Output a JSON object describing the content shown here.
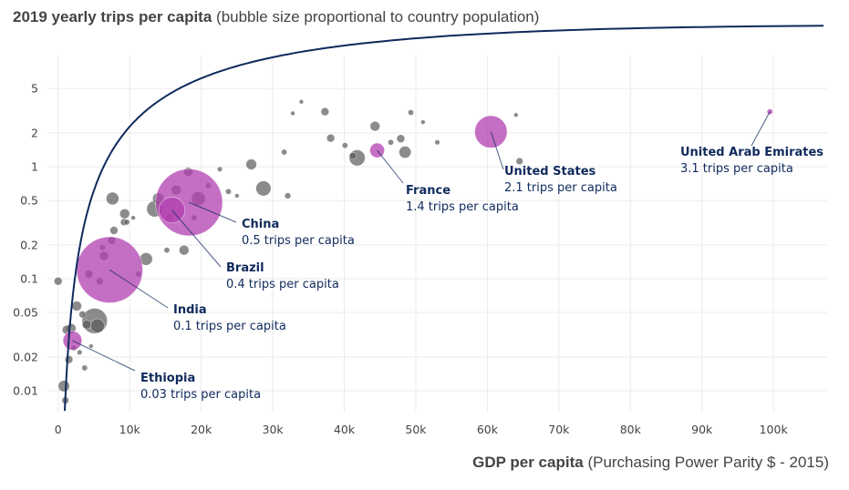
{
  "title": {
    "bold": "2019 yearly trips per capita",
    "rest": "(bubble size proportional to country population)"
  },
  "x_caption": {
    "bold": "GDP per capita",
    "rest": "(Purchasing Power Parity $ - 2015)"
  },
  "colors": {
    "highlight": "#b13fb0",
    "other": "#5a5a5a",
    "curve": "#0f2a5c",
    "annotation": "#0f2a5c",
    "grid": "#ebebeb"
  },
  "chart_data": {
    "type": "scatter",
    "title": "2019 yearly trips per capita",
    "xlabel": "GDP per capita (Purchasing Power Parity $ - 2015)",
    "ylabel": "",
    "xscale": "linear",
    "yscale": "log",
    "xlim": [
      -1500,
      107500
    ],
    "ylim": [
      0.0065,
      8
    ],
    "x_ticks": [
      0,
      10000,
      20000,
      30000,
      40000,
      50000,
      60000,
      70000,
      80000,
      90000,
      100000
    ],
    "x_tick_labels": [
      "0",
      "10k",
      "20k",
      "30k",
      "40k",
      "50k",
      "60k",
      "70k",
      "80k",
      "90k",
      "100k"
    ],
    "y_ticks": [
      0.01,
      0.02,
      0.05,
      0.1,
      0.2,
      0.5,
      1,
      2,
      5
    ],
    "y_tick_labels": [
      "0.01",
      "0.02",
      "0.05",
      "0.1",
      "0.2",
      "0.5",
      "1",
      "2",
      "5"
    ],
    "highlighted": [
      {
        "name": "Ethiopia",
        "label": "0.03 trips per capita",
        "x": 2000,
        "y": 0.028,
        "pop_m": 112
      },
      {
        "name": "India",
        "label": "0.1 trips per capita",
        "x": 7200,
        "y": 0.12,
        "pop_m": 1366
      },
      {
        "name": "Brazil",
        "label": "0.4 trips per capita",
        "x": 15900,
        "y": 0.41,
        "pop_m": 211
      },
      {
        "name": "China",
        "label": "0.5 trips per capita",
        "x": 18300,
        "y": 0.48,
        "pop_m": 1398
      },
      {
        "name": "France",
        "label": "1.4 trips per capita",
        "x": 44600,
        "y": 1.4,
        "pop_m": 67
      },
      {
        "name": "United States",
        "label": "2.1 trips per capita",
        "x": 60500,
        "y": 2.05,
        "pop_m": 328
      },
      {
        "name": "United Arab Emirates",
        "label": "3.1 trips per capita",
        "x": 99500,
        "y": 3.1,
        "pop_m": 10
      }
    ],
    "others": [
      {
        "x": 0,
        "y": 0.095,
        "pop_m": 20
      },
      {
        "x": 800,
        "y": 0.011,
        "pop_m": 40
      },
      {
        "x": 1000,
        "y": 0.0082,
        "pop_m": 15
      },
      {
        "x": 1200,
        "y": 0.035,
        "pop_m": 25
      },
      {
        "x": 1500,
        "y": 0.019,
        "pop_m": 20
      },
      {
        "x": 1800,
        "y": 0.036,
        "pop_m": 30
      },
      {
        "x": 2200,
        "y": 0.024,
        "pop_m": 10
      },
      {
        "x": 2600,
        "y": 0.057,
        "pop_m": 30
      },
      {
        "x": 3000,
        "y": 0.022,
        "pop_m": 8
      },
      {
        "x": 3400,
        "y": 0.048,
        "pop_m": 15
      },
      {
        "x": 3700,
        "y": 0.016,
        "pop_m": 10
      },
      {
        "x": 4000,
        "y": 0.039,
        "pop_m": 25
      },
      {
        "x": 4300,
        "y": 0.11,
        "pop_m": 20
      },
      {
        "x": 4600,
        "y": 0.025,
        "pop_m": 5
      },
      {
        "x": 5100,
        "y": 0.042,
        "pop_m": 200
      },
      {
        "x": 5500,
        "y": 0.038,
        "pop_m": 60
      },
      {
        "x": 5800,
        "y": 0.095,
        "pop_m": 15
      },
      {
        "x": 6400,
        "y": 0.16,
        "pop_m": 25
      },
      {
        "x": 6200,
        "y": 0.19,
        "pop_m": 10
      },
      {
        "x": 7500,
        "y": 0.22,
        "pop_m": 20
      },
      {
        "x": 7600,
        "y": 0.52,
        "pop_m": 50
      },
      {
        "x": 7800,
        "y": 0.27,
        "pop_m": 20
      },
      {
        "x": 9200,
        "y": 0.32,
        "pop_m": 15
      },
      {
        "x": 9300,
        "y": 0.38,
        "pop_m": 30
      },
      {
        "x": 9600,
        "y": 0.32,
        "pop_m": 10
      },
      {
        "x": 10500,
        "y": 0.35,
        "pop_m": 6
      },
      {
        "x": 11200,
        "y": 0.11,
        "pop_m": 10
      },
      {
        "x": 12300,
        "y": 0.15,
        "pop_m": 50
      },
      {
        "x": 13500,
        "y": 0.42,
        "pop_m": 80
      },
      {
        "x": 14000,
        "y": 0.52,
        "pop_m": 40
      },
      {
        "x": 15200,
        "y": 0.18,
        "pop_m": 10
      },
      {
        "x": 15600,
        "y": 0.35,
        "pop_m": 20
      },
      {
        "x": 16500,
        "y": 0.62,
        "pop_m": 30
      },
      {
        "x": 17600,
        "y": 0.18,
        "pop_m": 30
      },
      {
        "x": 18200,
        "y": 0.9,
        "pop_m": 25
      },
      {
        "x": 19000,
        "y": 0.35,
        "pop_m": 10
      },
      {
        "x": 19600,
        "y": 0.52,
        "pop_m": 60
      },
      {
        "x": 21000,
        "y": 0.68,
        "pop_m": 10
      },
      {
        "x": 22600,
        "y": 0.95,
        "pop_m": 8
      },
      {
        "x": 23800,
        "y": 0.6,
        "pop_m": 10
      },
      {
        "x": 25000,
        "y": 0.55,
        "pop_m": 6
      },
      {
        "x": 27000,
        "y": 1.05,
        "pop_m": 35
      },
      {
        "x": 28700,
        "y": 0.64,
        "pop_m": 70
      },
      {
        "x": 31600,
        "y": 1.35,
        "pop_m": 10
      },
      {
        "x": 32100,
        "y": 0.55,
        "pop_m": 12
      },
      {
        "x": 32800,
        "y": 3.0,
        "pop_m": 5
      },
      {
        "x": 34000,
        "y": 3.8,
        "pop_m": 4
      },
      {
        "x": 37300,
        "y": 3.1,
        "pop_m": 20
      },
      {
        "x": 38100,
        "y": 1.8,
        "pop_m": 20
      },
      {
        "x": 40100,
        "y": 1.55,
        "pop_m": 10
      },
      {
        "x": 41200,
        "y": 1.25,
        "pop_m": 15
      },
      {
        "x": 41800,
        "y": 1.2,
        "pop_m": 80
      },
      {
        "x": 44300,
        "y": 2.3,
        "pop_m": 30
      },
      {
        "x": 46500,
        "y": 1.65,
        "pop_m": 10
      },
      {
        "x": 47900,
        "y": 1.78,
        "pop_m": 20
      },
      {
        "x": 48500,
        "y": 1.35,
        "pop_m": 45
      },
      {
        "x": 49300,
        "y": 3.05,
        "pop_m": 10
      },
      {
        "x": 51000,
        "y": 2.5,
        "pop_m": 5
      },
      {
        "x": 53000,
        "y": 1.65,
        "pop_m": 8
      },
      {
        "x": 64000,
        "y": 2.9,
        "pop_m": 6
      },
      {
        "x": 64500,
        "y": 1.12,
        "pop_m": 15
      }
    ]
  }
}
